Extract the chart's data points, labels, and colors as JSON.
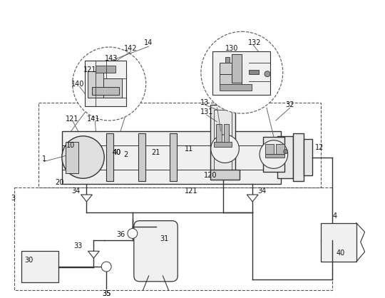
{
  "bg_color": "#ffffff",
  "line_color": "#333333",
  "dashed_color": "#555555",
  "label_color": "#111111",
  "fig_width": 5.4,
  "fig_height": 4.18
}
